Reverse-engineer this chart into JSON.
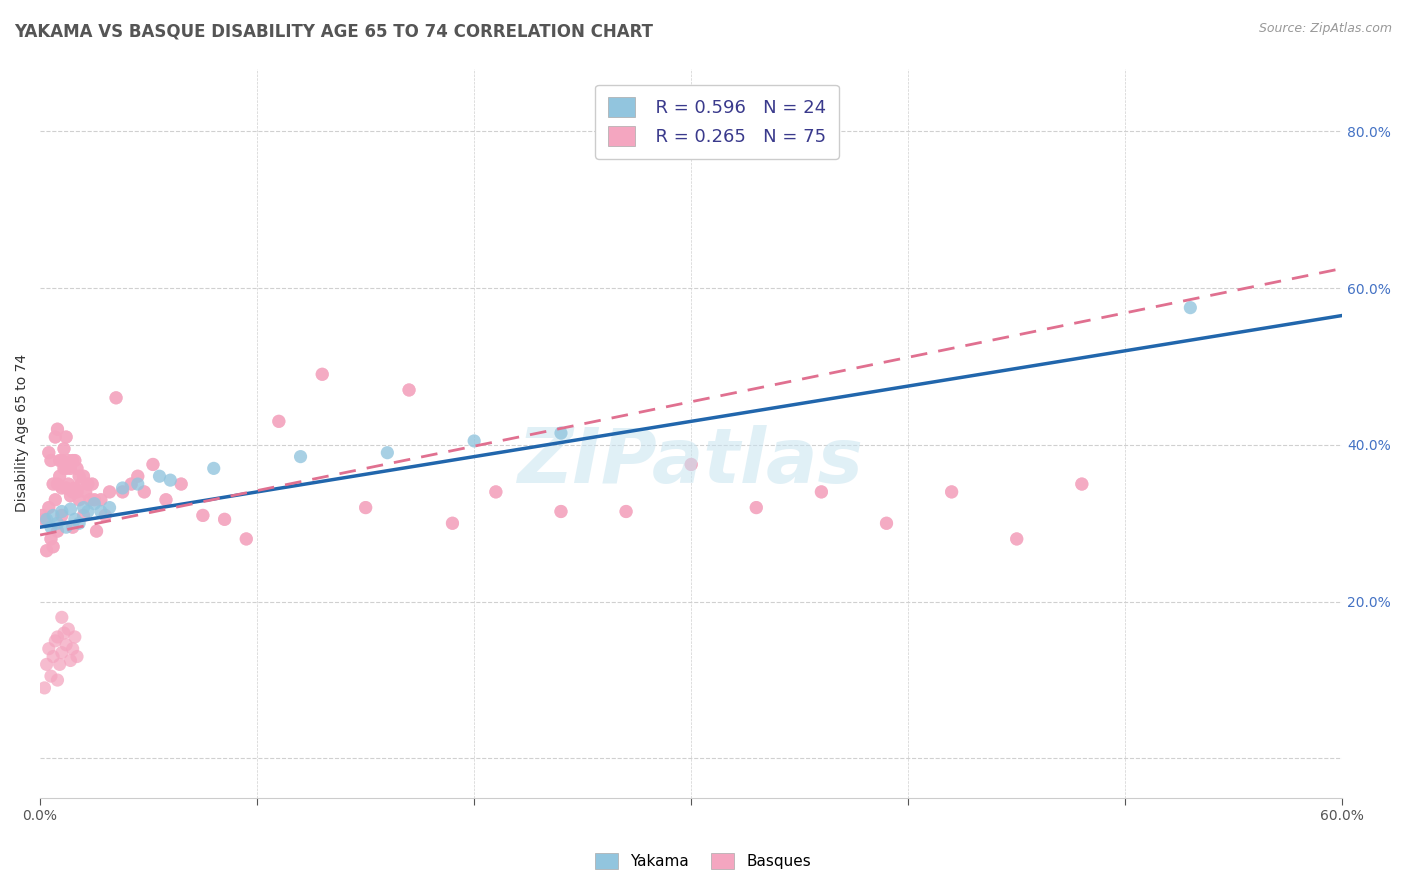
{
  "title": "YAKAMA VS BASQUE DISABILITY AGE 65 TO 74 CORRELATION CHART",
  "source": "Source: ZipAtlas.com",
  "ylabel": "Disability Age 65 to 74",
  "xlim": [
    0.0,
    0.6
  ],
  "ylim": [
    -0.05,
    0.88
  ],
  "background_color": "#ffffff",
  "grid_color": "#d0d0d0",
  "yakama_color": "#92c5de",
  "basque_color": "#f4a6c0",
  "yakama_line_color": "#2166ac",
  "basque_line_color": "#e07090",
  "legend_r_yakama": "R = 0.596",
  "legend_n_yakama": "N = 24",
  "legend_r_basque": "R = 0.265",
  "legend_n_basque": "N = 75",
  "title_fontsize": 12,
  "axis_label_fontsize": 10,
  "tick_fontsize": 10,
  "legend_fontsize": 13,
  "yakama_x": [
    0.003,
    0.005,
    0.006,
    0.008,
    0.01,
    0.012,
    0.014,
    0.016,
    0.018,
    0.02,
    0.022,
    0.025,
    0.028,
    0.032,
    0.038,
    0.045,
    0.055,
    0.06,
    0.08,
    0.12,
    0.16,
    0.2,
    0.24,
    0.53
  ],
  "yakama_y": [
    0.305,
    0.295,
    0.31,
    0.3,
    0.315,
    0.295,
    0.318,
    0.305,
    0.3,
    0.32,
    0.315,
    0.325,
    0.315,
    0.32,
    0.345,
    0.35,
    0.36,
    0.355,
    0.37,
    0.385,
    0.39,
    0.405,
    0.415,
    0.575
  ],
  "basque_x": [
    0.001,
    0.002,
    0.003,
    0.004,
    0.004,
    0.005,
    0.005,
    0.006,
    0.006,
    0.007,
    0.007,
    0.008,
    0.008,
    0.008,
    0.009,
    0.009,
    0.01,
    0.01,
    0.01,
    0.011,
    0.011,
    0.012,
    0.012,
    0.012,
    0.013,
    0.013,
    0.014,
    0.014,
    0.015,
    0.015,
    0.015,
    0.016,
    0.016,
    0.017,
    0.017,
    0.018,
    0.018,
    0.019,
    0.02,
    0.02,
    0.021,
    0.022,
    0.023,
    0.024,
    0.025,
    0.026,
    0.028,
    0.03,
    0.032,
    0.035,
    0.038,
    0.042,
    0.045,
    0.048,
    0.052,
    0.058,
    0.065,
    0.075,
    0.085,
    0.095,
    0.11,
    0.13,
    0.15,
    0.17,
    0.19,
    0.21,
    0.24,
    0.27,
    0.3,
    0.33,
    0.36,
    0.39,
    0.42,
    0.45,
    0.48
  ],
  "basque_y": [
    0.31,
    0.305,
    0.265,
    0.32,
    0.39,
    0.28,
    0.38,
    0.27,
    0.35,
    0.33,
    0.41,
    0.29,
    0.35,
    0.42,
    0.36,
    0.38,
    0.31,
    0.38,
    0.345,
    0.37,
    0.395,
    0.345,
    0.37,
    0.41,
    0.35,
    0.38,
    0.335,
    0.37,
    0.295,
    0.34,
    0.38,
    0.345,
    0.38,
    0.34,
    0.37,
    0.33,
    0.36,
    0.35,
    0.31,
    0.36,
    0.34,
    0.35,
    0.33,
    0.35,
    0.33,
    0.29,
    0.33,
    0.31,
    0.34,
    0.46,
    0.34,
    0.35,
    0.36,
    0.34,
    0.375,
    0.33,
    0.35,
    0.31,
    0.305,
    0.28,
    0.43,
    0.49,
    0.32,
    0.47,
    0.3,
    0.34,
    0.315,
    0.315,
    0.375,
    0.32,
    0.34,
    0.3,
    0.34,
    0.28,
    0.35
  ],
  "basque_low_x": [
    0.002,
    0.003,
    0.004,
    0.005,
    0.006,
    0.007,
    0.008,
    0.008,
    0.009,
    0.01,
    0.01,
    0.011,
    0.012,
    0.013,
    0.014,
    0.015,
    0.016,
    0.017
  ],
  "basque_low_y": [
    0.09,
    0.12,
    0.14,
    0.105,
    0.13,
    0.15,
    0.1,
    0.155,
    0.12,
    0.135,
    0.18,
    0.16,
    0.145,
    0.165,
    0.125,
    0.14,
    0.155,
    0.13
  ]
}
